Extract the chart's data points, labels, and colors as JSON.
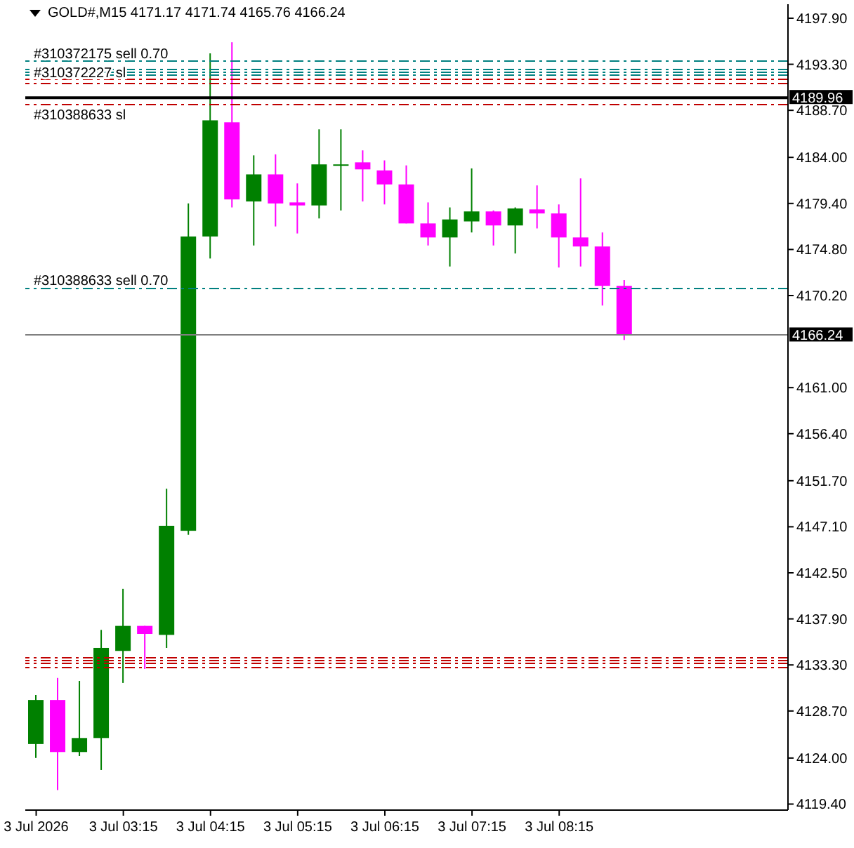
{
  "chart_data": {
    "type": "candlestick",
    "title": "GOLD#,M15 4171.17 4171.74 4165.76 4166.24",
    "categories": [
      "3 Jul 2026",
      null,
      null,
      null,
      "3 Jul 03:15",
      null,
      null,
      null,
      "3 Jul 04:15",
      null,
      null,
      null,
      "3 Jul 05:15",
      null,
      null,
      null,
      "3 Jul 06:15",
      null,
      null,
      null,
      "3 Jul 07:15",
      null,
      null,
      null,
      "3 Jul 08:15",
      null,
      null,
      null,
      null,
      null,
      null,
      null,
      null,
      null,
      null
    ],
    "ohlc": [
      [
        4125.4,
        4130.3,
        4124.0,
        4129.8
      ],
      [
        4129.8,
        4132.0,
        4120.8,
        4124.6
      ],
      [
        4124.6,
        4131.7,
        4124.2,
        4126.0
      ],
      [
        4126.0,
        4136.8,
        4122.8,
        4135.0
      ],
      [
        4134.7,
        4140.9,
        4131.5,
        4137.2
      ],
      [
        4137.2,
        4137.2,
        4132.9,
        4136.4
      ],
      [
        4136.3,
        4150.9,
        4135.0,
        4147.2
      ],
      [
        4146.7,
        4179.4,
        4146.3,
        4176.1
      ],
      [
        4176.1,
        4194.4,
        4173.9,
        4187.7
      ],
      [
        4187.5,
        4195.5,
        4179.0,
        4179.8
      ],
      [
        4179.6,
        4184.2,
        4175.2,
        4182.3
      ],
      [
        4182.3,
        4184.3,
        4177.1,
        4179.4
      ],
      [
        4179.5,
        4181.4,
        4176.4,
        4179.2
      ],
      [
        4179.2,
        4186.8,
        4177.9,
        4183.3
      ],
      [
        4183.2,
        4186.8,
        4178.7,
        4183.3
      ],
      [
        4183.5,
        4184.7,
        4179.6,
        4182.8
      ],
      [
        4182.7,
        4183.7,
        4179.3,
        4181.3
      ],
      [
        4181.3,
        4183.2,
        4177.4,
        4177.4
      ],
      [
        4177.4,
        4179.5,
        4175.2,
        4176.0
      ],
      [
        4176.0,
        4179.0,
        4173.1,
        4177.8
      ],
      [
        4177.6,
        4182.9,
        4176.5,
        4178.6
      ],
      [
        4178.6,
        4178.7,
        4175.2,
        4177.2
      ],
      [
        4177.2,
        4179.0,
        4174.4,
        4178.9
      ],
      [
        4178.8,
        4181.2,
        4176.9,
        4178.4
      ],
      [
        4178.4,
        4179.3,
        4173.0,
        4176.0
      ],
      [
        4176.0,
        4181.9,
        4173.1,
        4175.1
      ],
      [
        4175.1,
        4176.5,
        4169.2,
        4171.17
      ],
      [
        4171.17,
        4171.74,
        4165.76,
        4166.24
      ],
      null,
      null,
      null,
      null,
      null,
      null,
      null
    ],
    "colors": [
      "#008000",
      "#ff00ff",
      "#008000",
      "#008000",
      "#008000",
      "#ff00ff",
      "#008000",
      "#008000",
      "#008000",
      "#ff00ff",
      "#008000",
      "#ff00ff",
      "#ff00ff",
      "#008000",
      "#008000",
      "#ff00ff",
      "#ff00ff",
      "#ff00ff",
      "#ff00ff",
      "#008000",
      "#008000",
      "#ff00ff",
      "#008000",
      "#ff00ff",
      "#ff00ff",
      "#ff00ff",
      "#ff00ff",
      "#ff00ff",
      null,
      null,
      null,
      null,
      null,
      null,
      null
    ],
    "ylim": [
      4118.8,
      4199.3
    ],
    "yticks": [
      {
        "value": 4197.9,
        "label": "4197.90"
      },
      {
        "value": 4193.3,
        "label": "4193.30"
      },
      {
        "value": 4188.7,
        "label": "4188.70"
      },
      {
        "value": 4184.0,
        "label": "4184.00"
      },
      {
        "value": 4179.4,
        "label": "4179.40"
      },
      {
        "value": 4174.8,
        "label": "4174.80"
      },
      {
        "value": 4170.2,
        "label": "4170.20"
      },
      {
        "value": 4161.0,
        "label": "4161.00"
      },
      {
        "value": 4156.4,
        "label": "4156.40"
      },
      {
        "value": 4151.7,
        "label": "4151.70"
      },
      {
        "value": 4147.1,
        "label": "4147.10"
      },
      {
        "value": 4142.5,
        "label": "4142.50"
      },
      {
        "value": 4137.9,
        "label": "4137.90"
      },
      {
        "value": 4133.3,
        "label": "4133.30"
      },
      {
        "value": 4128.7,
        "label": "4128.70"
      },
      {
        "value": 4124.0,
        "label": "4124.00"
      },
      {
        "value": 4119.4,
        "label": "4119.40"
      }
    ],
    "ref_lines": [
      {
        "axis": "y",
        "value": 4193.65,
        "label": "#310372175 sell 0.70",
        "color": "#008080",
        "line_style": "dashed"
      },
      {
        "axis": "y",
        "value": 4192.81,
        "label": null,
        "color": "#008080",
        "line_style": "dashed"
      },
      {
        "axis": "y",
        "value": 4192.48,
        "label": null,
        "color": "#008080",
        "line_style": "dashed"
      },
      {
        "axis": "y",
        "value": 4192.15,
        "label": null,
        "color": "#008080",
        "line_style": "dashed"
      },
      {
        "axis": "y",
        "value": 4191.73,
        "label": "#310372227 sl",
        "color": "#c00000",
        "line_style": "dashed"
      },
      {
        "axis": "y",
        "value": 4191.41,
        "label": null,
        "color": "#c00000",
        "line_style": "dashed"
      },
      {
        "axis": "y",
        "value": 4189.96,
        "label": "4189.96",
        "color": "#000000",
        "line_style": "solid"
      },
      {
        "axis": "y",
        "value": 4189.21,
        "label": "#310388633 sl",
        "color": "#c00000",
        "line_style": "dashed"
      },
      {
        "axis": "y",
        "value": 4170.94,
        "label": "#310388633 sell 0.70",
        "color": "#008080",
        "line_style": "dashed"
      },
      {
        "axis": "y",
        "value": 4166.24,
        "label": "4166.24",
        "color": "#808080",
        "line_style": "solid"
      },
      {
        "axis": "y",
        "value": 4134.08,
        "label": null,
        "color": "#c00000",
        "line_style": "dashed"
      },
      {
        "axis": "y",
        "value": 4133.74,
        "label": null,
        "color": "#c00000",
        "line_style": "dashed"
      },
      {
        "axis": "y",
        "value": 4133.42,
        "label": null,
        "color": "#c00000",
        "line_style": "dashed"
      },
      {
        "axis": "y",
        "value": 4133.1,
        "label": null,
        "color": "#c00000",
        "line_style": "dashed"
      }
    ]
  }
}
